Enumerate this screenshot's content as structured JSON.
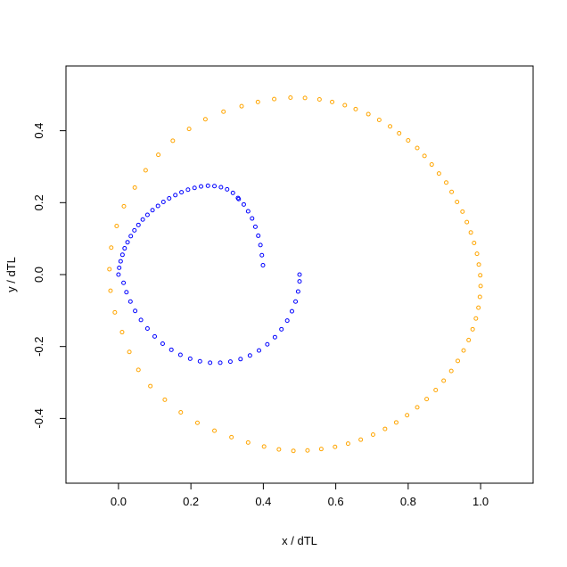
{
  "chart_data": {
    "type": "scatter",
    "title": "",
    "xlabel": "x / dTL",
    "ylabel": "y / dTL",
    "xlim": [
      -0.145,
      1.145
    ],
    "ylim": [
      -0.58,
      0.58
    ],
    "xticks": [
      0.0,
      0.2,
      0.4,
      0.6,
      0.8,
      1.0
    ],
    "yticks": [
      -0.4,
      -0.2,
      0.0,
      0.2,
      0.4
    ],
    "xtick_labels": [
      "0.0",
      "0.2",
      "0.4",
      "0.6",
      "0.8",
      "1.0"
    ],
    "ytick_labels": [
      "-0.4",
      "-0.2",
      "0.0",
      "0.2",
      "0.4"
    ],
    "grid": false,
    "legend": "none",
    "marker": "open-circle",
    "series": [
      {
        "color": "#FFA500",
        "points": [
          {
            "x": -0.025,
            "y": 0.015
          },
          {
            "x": -0.02,
            "y": 0.075
          },
          {
            "x": -0.005,
            "y": 0.135
          },
          {
            "x": 0.015,
            "y": 0.19
          },
          {
            "x": 0.045,
            "y": 0.242
          },
          {
            "x": 0.075,
            "y": 0.29
          },
          {
            "x": 0.11,
            "y": 0.333
          },
          {
            "x": 0.15,
            "y": 0.372
          },
          {
            "x": 0.195,
            "y": 0.405
          },
          {
            "x": 0.24,
            "y": 0.432
          },
          {
            "x": 0.29,
            "y": 0.453
          },
          {
            "x": 0.34,
            "y": 0.468
          },
          {
            "x": 0.385,
            "y": 0.48
          },
          {
            "x": 0.43,
            "y": 0.488
          },
          {
            "x": 0.475,
            "y": 0.492
          },
          {
            "x": 0.515,
            "y": 0.491
          },
          {
            "x": 0.555,
            "y": 0.487
          },
          {
            "x": 0.59,
            "y": 0.48
          },
          {
            "x": 0.625,
            "y": 0.471
          },
          {
            "x": 0.655,
            "y": 0.46
          },
          {
            "x": 0.69,
            "y": 0.446
          },
          {
            "x": 0.72,
            "y": 0.43
          },
          {
            "x": 0.75,
            "y": 0.412
          },
          {
            "x": 0.775,
            "y": 0.393
          },
          {
            "x": 0.8,
            "y": 0.373
          },
          {
            "x": 0.825,
            "y": 0.352
          },
          {
            "x": 0.845,
            "y": 0.33
          },
          {
            "x": 0.865,
            "y": 0.306
          },
          {
            "x": 0.885,
            "y": 0.281
          },
          {
            "x": 0.905,
            "y": 0.256
          },
          {
            "x": 0.92,
            "y": 0.23
          },
          {
            "x": 0.935,
            "y": 0.202
          },
          {
            "x": 0.95,
            "y": 0.175
          },
          {
            "x": 0.962,
            "y": 0.146
          },
          {
            "x": 0.973,
            "y": 0.117
          },
          {
            "x": 0.982,
            "y": 0.088
          },
          {
            "x": 0.99,
            "y": 0.058
          },
          {
            "x": 0.995,
            "y": 0.028
          },
          {
            "x": 0.999,
            "y": -0.002
          },
          {
            "x": 1.0,
            "y": -0.032
          },
          {
            "x": 0.998,
            "y": -0.062
          },
          {
            "x": 0.994,
            "y": -0.092
          },
          {
            "x": 0.987,
            "y": -0.122
          },
          {
            "x": 0.978,
            "y": -0.152
          },
          {
            "x": 0.967,
            "y": -0.182
          },
          {
            "x": 0.953,
            "y": -0.211
          },
          {
            "x": 0.937,
            "y": -0.24
          },
          {
            "x": 0.919,
            "y": -0.268
          },
          {
            "x": 0.898,
            "y": -0.295
          },
          {
            "x": 0.876,
            "y": -0.321
          },
          {
            "x": 0.851,
            "y": -0.346
          },
          {
            "x": 0.825,
            "y": -0.369
          },
          {
            "x": 0.797,
            "y": -0.391
          },
          {
            "x": 0.767,
            "y": -0.411
          },
          {
            "x": 0.736,
            "y": -0.429
          },
          {
            "x": 0.703,
            "y": -0.445
          },
          {
            "x": 0.669,
            "y": -0.459
          },
          {
            "x": 0.634,
            "y": -0.47
          },
          {
            "x": 0.598,
            "y": -0.479
          },
          {
            "x": 0.56,
            "y": -0.485
          },
          {
            "x": 0.522,
            "y": -0.489
          },
          {
            "x": 0.483,
            "y": -0.49
          },
          {
            "x": 0.443,
            "y": -0.486
          },
          {
            "x": 0.402,
            "y": -0.478
          },
          {
            "x": 0.358,
            "y": -0.467
          },
          {
            "x": 0.312,
            "y": -0.452
          },
          {
            "x": 0.265,
            "y": -0.434
          },
          {
            "x": 0.218,
            "y": -0.412
          },
          {
            "x": 0.172,
            "y": -0.383
          },
          {
            "x": 0.128,
            "y": -0.348
          },
          {
            "x": 0.088,
            "y": -0.31
          },
          {
            "x": 0.055,
            "y": -0.265
          },
          {
            "x": 0.03,
            "y": -0.215
          },
          {
            "x": 0.01,
            "y": -0.16
          },
          {
            "x": -0.01,
            "y": -0.105
          },
          {
            "x": -0.022,
            "y": -0.045
          }
        ]
      },
      {
        "color": "#0000FF",
        "points": [
          {
            "x": 0.0,
            "y": 0.0
          },
          {
            "x": 0.002,
            "y": 0.019
          },
          {
            "x": 0.006,
            "y": 0.037
          },
          {
            "x": 0.011,
            "y": 0.055
          },
          {
            "x": 0.017,
            "y": 0.073
          },
          {
            "x": 0.025,
            "y": 0.09
          },
          {
            "x": 0.034,
            "y": 0.107
          },
          {
            "x": 0.044,
            "y": 0.123
          },
          {
            "x": 0.055,
            "y": 0.138
          },
          {
            "x": 0.067,
            "y": 0.153
          },
          {
            "x": 0.08,
            "y": 0.166
          },
          {
            "x": 0.094,
            "y": 0.179
          },
          {
            "x": 0.109,
            "y": 0.191
          },
          {
            "x": 0.124,
            "y": 0.202
          },
          {
            "x": 0.14,
            "y": 0.212
          },
          {
            "x": 0.157,
            "y": 0.221
          },
          {
            "x": 0.174,
            "y": 0.229
          },
          {
            "x": 0.192,
            "y": 0.236
          },
          {
            "x": 0.21,
            "y": 0.241
          },
          {
            "x": 0.228,
            "y": 0.245
          },
          {
            "x": 0.247,
            "y": 0.247
          },
          {
            "x": 0.265,
            "y": 0.246
          },
          {
            "x": 0.283,
            "y": 0.243
          },
          {
            "x": 0.3,
            "y": 0.237
          },
          {
            "x": 0.316,
            "y": 0.227
          },
          {
            "x": 0.33,
            "y": 0.213
          },
          {
            "x": 0.332,
            "y": 0.21
          },
          {
            "x": 0.346,
            "y": 0.195
          },
          {
            "x": 0.358,
            "y": 0.176
          },
          {
            "x": 0.369,
            "y": 0.156
          },
          {
            "x": 0.378,
            "y": 0.133
          },
          {
            "x": 0.386,
            "y": 0.108
          },
          {
            "x": 0.392,
            "y": 0.082
          },
          {
            "x": 0.396,
            "y": 0.054
          },
          {
            "x": 0.399,
            "y": 0.026
          },
          {
            "x": 0.5,
            "y": 0.0
          },
          {
            "x": 0.5,
            "y": -0.019
          },
          {
            "x": 0.496,
            "y": -0.047
          },
          {
            "x": 0.489,
            "y": -0.075
          },
          {
            "x": 0.479,
            "y": -0.102
          },
          {
            "x": 0.466,
            "y": -0.128
          },
          {
            "x": 0.45,
            "y": -0.152
          },
          {
            "x": 0.432,
            "y": -0.174
          },
          {
            "x": 0.411,
            "y": -0.194
          },
          {
            "x": 0.388,
            "y": -0.211
          },
          {
            "x": 0.363,
            "y": -0.225
          },
          {
            "x": 0.337,
            "y": -0.235
          },
          {
            "x": 0.309,
            "y": -0.242
          },
          {
            "x": 0.281,
            "y": -0.245
          },
          {
            "x": 0.253,
            "y": -0.245
          },
          {
            "x": 0.225,
            "y": -0.241
          },
          {
            "x": 0.198,
            "y": -0.234
          },
          {
            "x": 0.171,
            "y": -0.223
          },
          {
            "x": 0.146,
            "y": -0.209
          },
          {
            "x": 0.122,
            "y": -0.192
          },
          {
            "x": 0.1,
            "y": -0.172
          },
          {
            "x": 0.08,
            "y": -0.15
          },
          {
            "x": 0.062,
            "y": -0.126
          },
          {
            "x": 0.046,
            "y": -0.101
          },
          {
            "x": 0.033,
            "y": -0.075
          },
          {
            "x": 0.022,
            "y": -0.049
          },
          {
            "x": 0.014,
            "y": -0.023
          }
        ]
      }
    ]
  }
}
